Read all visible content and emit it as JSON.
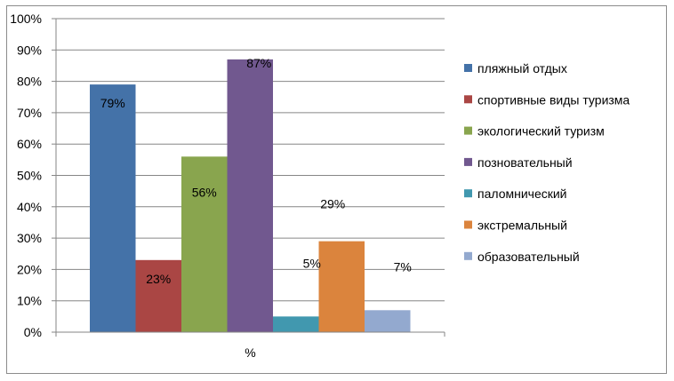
{
  "chart_data": {
    "type": "bar",
    "categories": [
      "%"
    ],
    "xlabel": "%",
    "ylim": [
      0,
      100
    ],
    "y_ticks": [
      "0%",
      "10%",
      "20%",
      "30%",
      "40%",
      "50%",
      "60%",
      "70%",
      "80%",
      "90%",
      "100%"
    ],
    "grid": true,
    "legend_position": "right",
    "series": [
      {
        "name": "пляжный отдых",
        "values": [
          79
        ],
        "label": "79%",
        "color": "#4472A8"
      },
      {
        "name": "спортивные виды  туризма",
        "values": [
          23
        ],
        "label": "23%",
        "color": "#AA4644"
      },
      {
        "name": "экологический туризм",
        "values": [
          56
        ],
        "label": "56%",
        "color": "#89A54E"
      },
      {
        "name": "позновательный",
        "values": [
          87
        ],
        "label": "87%",
        "color": "#71588F"
      },
      {
        "name": "паломнический",
        "values": [
          5
        ],
        "label": "5%",
        "color": "#4198AF"
      },
      {
        "name": "экстремальный",
        "values": [
          29
        ],
        "label": "29%",
        "color": "#DB843D"
      },
      {
        "name": "образовательный",
        "values": [
          7
        ],
        "label": "7%",
        "color": "#93A9CF"
      }
    ]
  }
}
